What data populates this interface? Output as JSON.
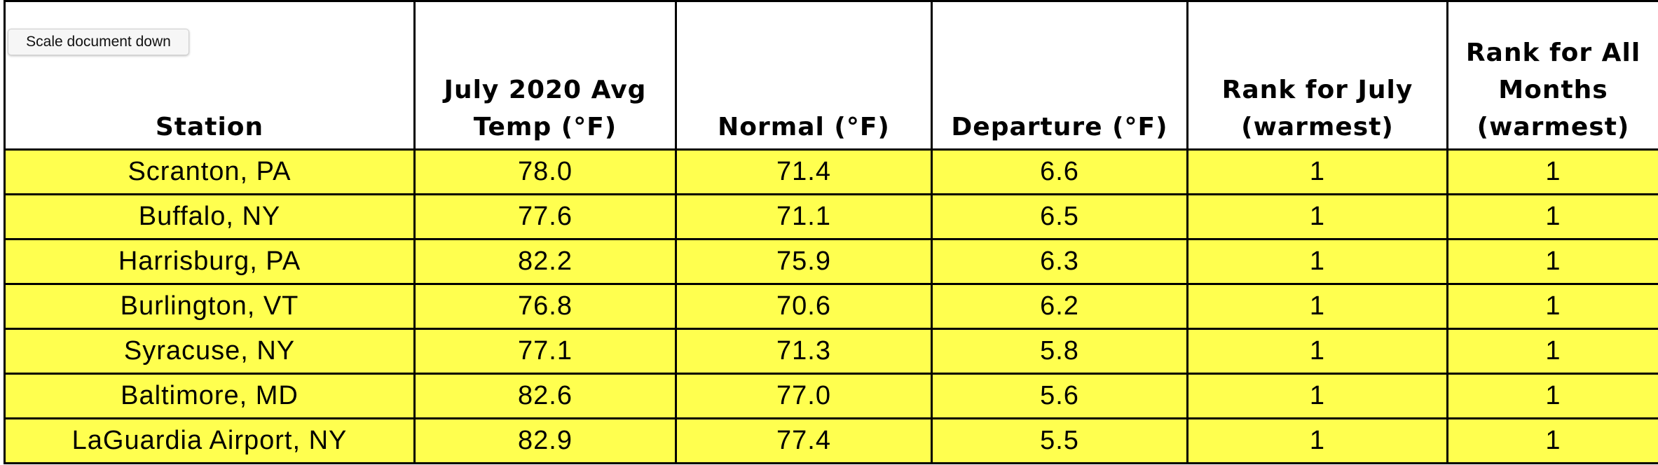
{
  "button": "Scale document down",
  "table": {
    "header": [
      "Station",
      "July 2020 Avg Temp (°F)",
      "Normal (°F)",
      "Departure (°F)",
      "Rank for July (warmest)",
      "Rank for All Months (warmest)"
    ],
    "rows": [
      [
        "Scranton, PA",
        "78.0",
        "71.4",
        "6.6",
        "1",
        "1"
      ],
      [
        "Buffalo, NY",
        "77.6",
        "71.1",
        "6.5",
        "1",
        "1"
      ],
      [
        "Harrisburg, PA",
        "82.2",
        "75.9",
        "6.3",
        "1",
        "1"
      ],
      [
        "Burlington, VT",
        "76.8",
        "70.6",
        "6.2",
        "1",
        "1"
      ],
      [
        "Syracuse, NY",
        "77.1",
        "71.3",
        "5.8",
        "1",
        "1"
      ],
      [
        "Baltimore, MD",
        "82.6",
        "77.0",
        "5.6",
        "1",
        "1"
      ],
      [
        "LaGuardia Airport, NY",
        "82.9",
        "77.4",
        "5.5",
        "1",
        "1"
      ]
    ]
  }
}
